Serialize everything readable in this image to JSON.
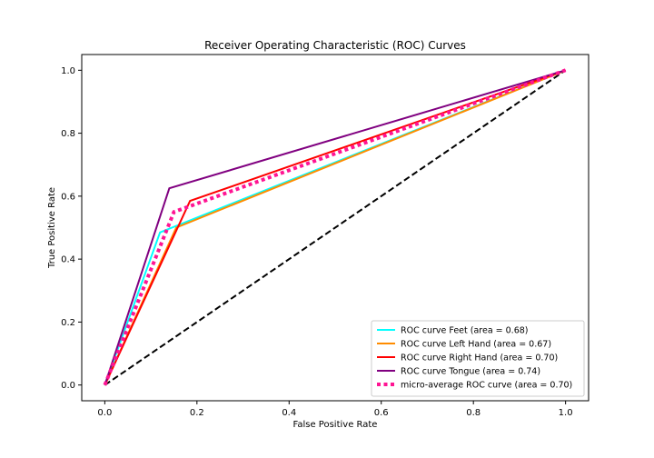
{
  "chart_data": {
    "type": "line",
    "title": "Receiver Operating Characteristic (ROC) Curves",
    "xlabel": "False Positive Rate",
    "ylabel": "True Positive Rate",
    "xlim": [
      -0.05,
      1.05
    ],
    "ylim": [
      -0.05,
      1.05
    ],
    "xticks": [
      0.0,
      0.2,
      0.4,
      0.6,
      0.8,
      1.0
    ],
    "yticks": [
      0.0,
      0.2,
      0.4,
      0.6,
      0.8,
      1.0
    ],
    "xtick_labels": [
      "0.0",
      "0.2",
      "0.4",
      "0.6",
      "0.8",
      "1.0"
    ],
    "ytick_labels": [
      "0.0",
      "0.2",
      "0.4",
      "0.6",
      "0.8",
      "1.0"
    ],
    "grid": false,
    "legend_position": "lower-right",
    "series": [
      {
        "name": "ROC curve Feet (area = 0.68)",
        "color": "#00ffff",
        "style": "solid",
        "x": [
          0.0,
          0.12,
          1.0
        ],
        "y": [
          0.0,
          0.485,
          1.0
        ]
      },
      {
        "name": "ROC curve Left Hand (area = 0.67)",
        "color": "#ff8c00",
        "style": "solid",
        "x": [
          0.0,
          0.155,
          1.0
        ],
        "y": [
          0.0,
          0.5,
          1.0
        ]
      },
      {
        "name": "ROC curve Right Hand (area = 0.70)",
        "color": "#ff0000",
        "style": "solid",
        "x": [
          0.0,
          0.185,
          1.0
        ],
        "y": [
          0.0,
          0.585,
          1.0
        ]
      },
      {
        "name": "ROC curve Tongue (area = 0.74)",
        "color": "#800080",
        "style": "solid",
        "x": [
          0.0,
          0.14,
          1.0
        ],
        "y": [
          0.0,
          0.625,
          1.0
        ]
      },
      {
        "name": "micro-average ROC curve (area = 0.70)",
        "color": "#ff1493",
        "style": "dotted",
        "x": [
          0.0,
          0.15,
          1.0
        ],
        "y": [
          0.0,
          0.55,
          1.0
        ]
      }
    ],
    "reference_line": {
      "color": "#000000",
      "style": "dashed",
      "x": [
        0.0,
        1.0
      ],
      "y": [
        0.0,
        1.0
      ]
    }
  }
}
